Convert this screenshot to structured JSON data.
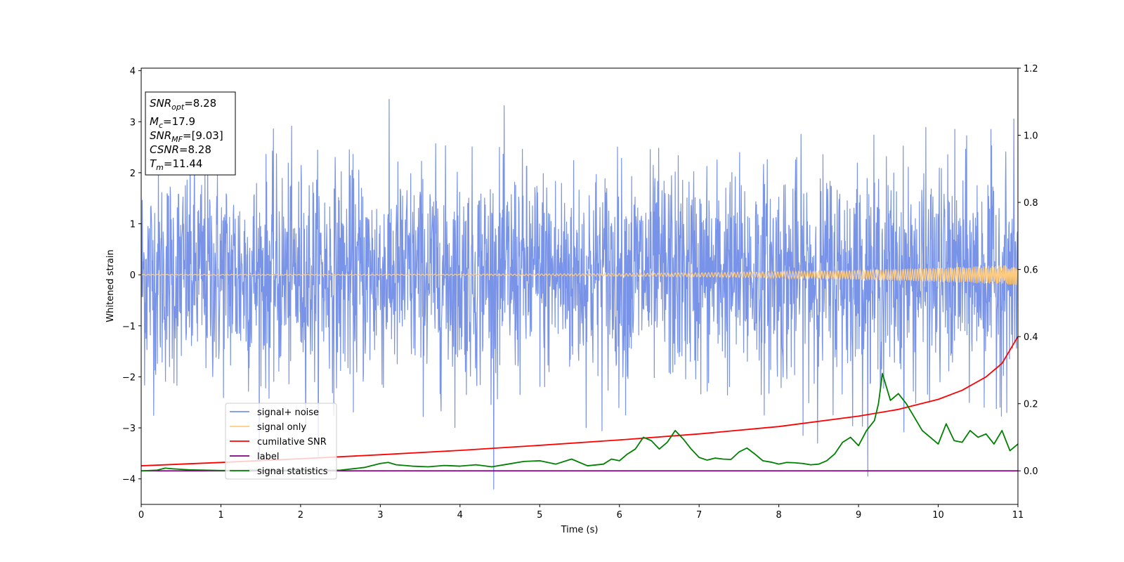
{
  "chart_data": {
    "type": "line",
    "title": "",
    "xlabel": "Time (s)",
    "ylabel": "Whitened strain",
    "xlim": [
      0,
      11
    ],
    "ylim_left": [
      -4.5,
      4.05
    ],
    "ylim_right": [
      -0.1,
      1.2
    ],
    "x_ticks": [
      "0",
      "1",
      "2",
      "3",
      "4",
      "5",
      "6",
      "7",
      "8",
      "9",
      "10",
      "11"
    ],
    "y_ticks_left": [
      "−4",
      "−3",
      "−2",
      "−1",
      "0",
      "1",
      "2",
      "3",
      "4"
    ],
    "y_ticks_right": [
      "0.0",
      "0.2",
      "0.4",
      "0.6",
      "0.8",
      "1.0",
      "1.2"
    ],
    "grid": false,
    "legend_position": "lower-left",
    "info_box": {
      "line1": {
        "sym": "SNR",
        "sub": "opt",
        "rest": "=8.28"
      },
      "line2": {
        "sym": "M",
        "sub": "c",
        "rest": "=17.9"
      },
      "line3": {
        "sym": "SNR",
        "sub": "MF",
        "rest": "=[9.03]"
      },
      "line4": {
        "sym": "CSNR",
        "sub": "",
        "rest": "=8.28"
      },
      "line5": {
        "sym": "T",
        "sub": "m",
        "rest": "=11.44"
      }
    },
    "series": [
      {
        "name": "signal+ noise",
        "axis": "left",
        "color": "#7893e8",
        "kind": "gaussian noise, sigma about 1.05, peaks to about ±3.6",
        "x_range": [
          0,
          11
        ]
      },
      {
        "name": "signal only",
        "axis": "left",
        "color": "#ffcc80",
        "kind": "chirp, amplitude growing from 0.01 to 0.2",
        "x_range": [
          0,
          11
        ]
      },
      {
        "name": "cumilative SNR",
        "axis": "right",
        "color": "#ff0000",
        "x": [
          0,
          1,
          2,
          3,
          4,
          5,
          6,
          7,
          8,
          9,
          9.5,
          10,
          10.3,
          10.6,
          10.8,
          11
        ],
        "y": [
          0.015,
          0.025,
          0.036,
          0.048,
          0.061,
          0.076,
          0.092,
          0.11,
          0.132,
          0.163,
          0.183,
          0.213,
          0.24,
          0.28,
          0.32,
          0.4
        ]
      },
      {
        "name": "label",
        "axis": "right",
        "color": "#800080",
        "x": [
          0,
          11
        ],
        "y": [
          0,
          0
        ]
      },
      {
        "name": "signal statistics",
        "axis": "right",
        "color": "#008000",
        "x": [
          0,
          0.2,
          0.3,
          0.4,
          0.6,
          0.8,
          1.0,
          1.5,
          2.0,
          2.5,
          2.8,
          3.0,
          3.1,
          3.2,
          3.4,
          3.6,
          3.8,
          4.0,
          4.2,
          4.4,
          4.6,
          4.8,
          5.0,
          5.2,
          5.4,
          5.6,
          5.8,
          5.9,
          6.0,
          6.1,
          6.2,
          6.3,
          6.4,
          6.5,
          6.6,
          6.7,
          6.8,
          6.9,
          7.0,
          7.1,
          7.2,
          7.3,
          7.4,
          7.5,
          7.6,
          7.7,
          7.8,
          7.9,
          8.0,
          8.1,
          8.2,
          8.3,
          8.4,
          8.5,
          8.6,
          8.7,
          8.8,
          8.9,
          9.0,
          9.1,
          9.2,
          9.25,
          9.3,
          9.4,
          9.5,
          9.6,
          9.7,
          9.8,
          9.9,
          10.0,
          10.1,
          10.2,
          10.3,
          10.4,
          10.5,
          10.6,
          10.7,
          10.8,
          10.9,
          11.0
        ],
        "y": [
          0.0,
          0.002,
          0.008,
          0.006,
          0.003,
          0.002,
          0.001,
          0.002,
          0.001,
          0.002,
          0.01,
          0.022,
          0.025,
          0.018,
          0.014,
          0.012,
          0.016,
          0.014,
          0.018,
          0.012,
          0.02,
          0.028,
          0.03,
          0.02,
          0.035,
          0.015,
          0.02,
          0.035,
          0.03,
          0.05,
          0.065,
          0.1,
          0.09,
          0.065,
          0.085,
          0.12,
          0.095,
          0.065,
          0.04,
          0.032,
          0.038,
          0.035,
          0.034,
          0.056,
          0.068,
          0.05,
          0.03,
          0.026,
          0.02,
          0.025,
          0.024,
          0.022,
          0.018,
          0.02,
          0.03,
          0.05,
          0.085,
          0.1,
          0.075,
          0.12,
          0.15,
          0.2,
          0.29,
          0.21,
          0.23,
          0.2,
          0.16,
          0.12,
          0.1,
          0.08,
          0.14,
          0.09,
          0.085,
          0.12,
          0.1,
          0.11,
          0.08,
          0.12,
          0.06,
          0.08
        ]
      }
    ]
  }
}
